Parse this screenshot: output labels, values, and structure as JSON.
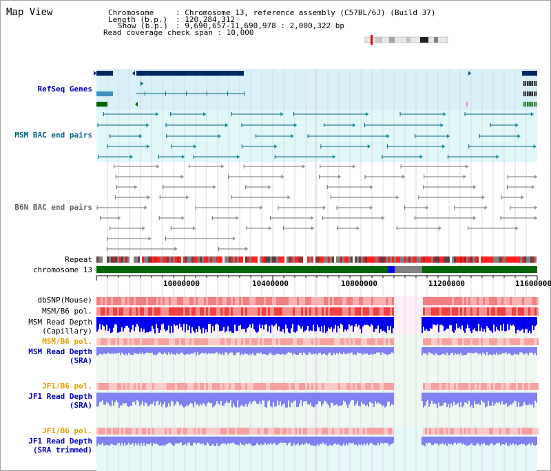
{
  "view": {
    "title": "Map View"
  },
  "info": {
    "chromosome_key": "Chromosome",
    "chromosome_val": ": Chromosome 13, reference assembly (C57BL/6J) (Build 37)",
    "length_key": "Length (b.p.)",
    "length_val": ": 120,284,312",
    "show_key": "Show (b.p.)",
    "show_val": ": 9,690,657-11,690,978 : 2,000,322 bp",
    "coverage": "Read coverage check span : 10,000"
  },
  "track_labels": {
    "refseq": "RefSeq Genes",
    "msm_bac": "MSM BAC end pairs",
    "b6n_bac": "B6N BAC end pairs",
    "repeat": "Repeat",
    "chromosome": "chromosome 13",
    "dbsnp": "dbSNP(Mouse)",
    "msm_b6_pol": "MSM/B6 pol.",
    "msm_depth_cap_1": "MSM Read Depth",
    "msm_depth_cap_2": "(Capillary)",
    "msm_b6_pol_sra": "MSM/B6 pol.",
    "msm_depth_sra_1": "MSM Read Depth",
    "msm_depth_sra_2": "(SRA)",
    "jf1_pol_1": "JF1/B6 pol.",
    "jf1_depth_1": "JF1 Read Depth",
    "jf1_depth_1b": "(SRA)",
    "jf1_pol_2": "JF1/B6 pol.",
    "jf1_depth_2": "JF1 Read Depth",
    "jf1_depth_2b": "(SRA trimmed)"
  },
  "axis": {
    "ticks": [
      "10000000",
      "10400000",
      "10800000",
      "11200000",
      "11600000"
    ],
    "range": [
      9690657,
      11690978
    ]
  },
  "colors": {
    "refseq_bg": "#d8f0f8",
    "msm_bac_bg": "#e0f8f8",
    "gene_dark": "#002860",
    "chromosome_green": "#006400",
    "depth_blue": "#0000ee",
    "depth_light": "#8080f0",
    "pol_label_orange": "#e0a000",
    "label_blue": "#0000c0",
    "label_teal": "#006080"
  }
}
